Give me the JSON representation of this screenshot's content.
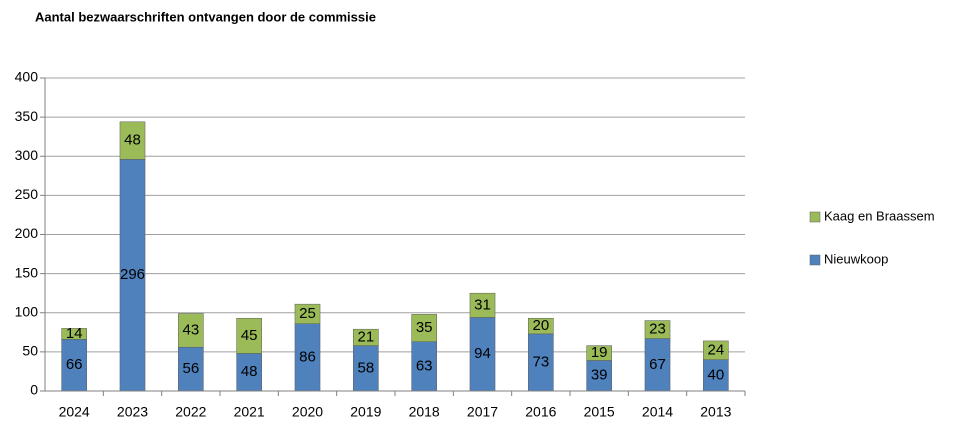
{
  "chart_data": {
    "type": "bar",
    "stacked": true,
    "title": "Aantal bezwaarschriften ontvangen door de commissie",
    "categories": [
      "2024",
      "2023",
      "2022",
      "2021",
      "2020",
      "2019",
      "2018",
      "2017",
      "2016",
      "2015",
      "2014",
      "2013"
    ],
    "series": [
      {
        "name": "Nieuwkoop",
        "color": "#4f81bd",
        "values": [
          66,
          296,
          56,
          48,
          86,
          58,
          63,
          94,
          73,
          39,
          67,
          40
        ]
      },
      {
        "name": "Kaag en Braassem",
        "color": "#9bbb59",
        "values": [
          14,
          48,
          43,
          45,
          25,
          21,
          35,
          31,
          20,
          19,
          23,
          24
        ]
      }
    ],
    "ylim": [
      0,
      400
    ],
    "yticks": [
      0,
      50,
      100,
      150,
      200,
      250,
      300,
      350,
      400
    ],
    "grid": true,
    "legend": "right"
  }
}
